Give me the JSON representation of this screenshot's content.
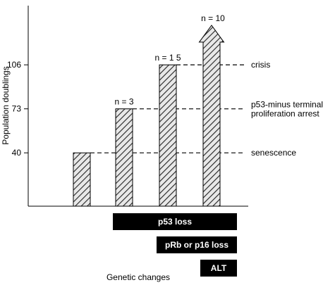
{
  "chart_data": {
    "type": "bar",
    "ylabel": "Population doublings",
    "xlabel": "Genetic changes",
    "y_ticks": [
      40,
      73,
      106
    ],
    "ylim": [
      0,
      150
    ],
    "bars": [
      {
        "value": 40,
        "n_label": "",
        "arrow": false
      },
      {
        "value": 73,
        "n_label": "n = 3",
        "arrow": false
      },
      {
        "value": 106,
        "n_label": "n = 1 5",
        "arrow": false
      },
      {
        "value": 123,
        "n_label": "n = 10",
        "arrow": true
      }
    ],
    "thresholds": [
      {
        "value": 106,
        "lines": [
          "crisis"
        ]
      },
      {
        "value": 73,
        "lines": [
          "p53-minus terminal",
          "proliferation arrest"
        ]
      },
      {
        "value": 40,
        "lines": [
          "senescence"
        ]
      }
    ],
    "genetic_changes": [
      {
        "label": "p53 loss",
        "from_bar": 1,
        "to_bar": 3
      },
      {
        "label": "pRb or p16 loss",
        "from_bar": 2,
        "to_bar": 3
      },
      {
        "label": "ALT",
        "from_bar": 3,
        "to_bar": 3
      }
    ]
  }
}
